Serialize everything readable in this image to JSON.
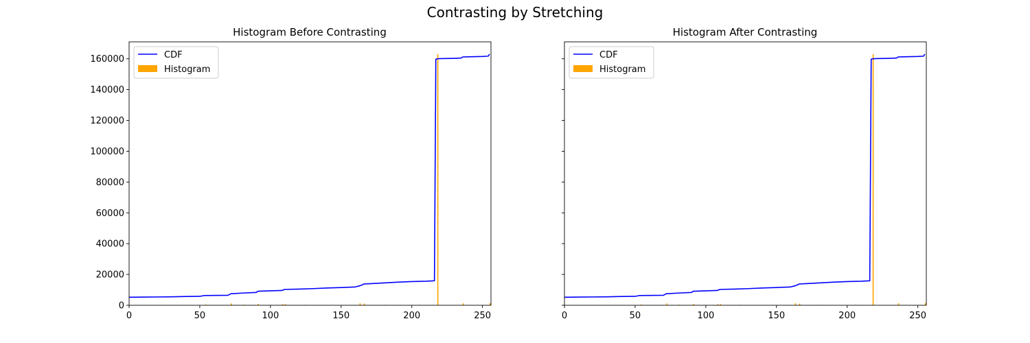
{
  "figure_title": "Contrasting by Stretching",
  "colors": {
    "cdf": "#0000ff",
    "histogram": "#ffa500"
  },
  "chart_data": [
    {
      "type": "line",
      "title": "Histogram Before Contrasting",
      "xlim": [
        0,
        256
      ],
      "ylim": [
        0,
        171000
      ],
      "x_ticks": [
        0,
        50,
        100,
        150,
        200,
        250
      ],
      "y_ticks": [
        0,
        20000,
        40000,
        60000,
        80000,
        100000,
        120000,
        140000,
        160000
      ],
      "show_y_tick_labels": true,
      "grid": false,
      "legend": {
        "position": "upper-left",
        "entries": [
          "CDF",
          "Histogram"
        ]
      },
      "cdf": {
        "name": "CDF",
        "x": [
          0,
          10,
          20,
          30,
          40,
          50,
          53,
          70,
          72,
          80,
          90,
          91,
          100,
          108,
          110,
          120,
          130,
          140,
          150,
          160,
          163,
          165,
          166,
          170,
          175,
          180,
          190,
          200,
          210,
          216,
          217,
          218,
          220,
          230,
          235,
          236,
          240,
          250,
          254,
          255
        ],
        "y": [
          5200,
          5300,
          5400,
          5500,
          5700,
          5800,
          6300,
          6500,
          7500,
          7900,
          8300,
          9100,
          9400,
          9600,
          10300,
          10500,
          10800,
          11200,
          11500,
          11900,
          12600,
          13300,
          13800,
          14000,
          14200,
          14500,
          15000,
          15400,
          15600,
          15900,
          159700,
          160000,
          160100,
          160300,
          160500,
          161200,
          161300,
          161500,
          161700,
          163000
        ]
      },
      "histogram": {
        "name": "Histogram",
        "x": [
          54,
          72,
          81,
          91,
          100,
          108,
          110,
          124,
          163,
          166,
          181,
          205,
          218,
          236,
          255
        ],
        "y": [
          500,
          1200,
          400,
          900,
          300,
          700,
          800,
          300,
          1300,
          1100,
          300,
          300,
          163000,
          1300,
          1400
        ]
      }
    },
    {
      "type": "line",
      "title": "Histogram After Contrasting",
      "xlim": [
        0,
        256
      ],
      "ylim": [
        0,
        171000
      ],
      "x_ticks": [
        0,
        50,
        100,
        150,
        200,
        250
      ],
      "y_ticks": [
        0,
        20000,
        40000,
        60000,
        80000,
        100000,
        120000,
        140000,
        160000
      ],
      "show_y_tick_labels": false,
      "grid": false,
      "legend": {
        "position": "upper-left",
        "entries": [
          "CDF",
          "Histogram"
        ]
      },
      "cdf": {
        "name": "CDF",
        "x": [
          0,
          10,
          20,
          30,
          40,
          50,
          53,
          70,
          72,
          80,
          90,
          91,
          100,
          108,
          110,
          120,
          130,
          140,
          150,
          160,
          163,
          165,
          166,
          170,
          175,
          180,
          190,
          200,
          210,
          216,
          217,
          218,
          220,
          230,
          235,
          236,
          240,
          250,
          254,
          255
        ],
        "y": [
          5200,
          5300,
          5400,
          5500,
          5700,
          5800,
          6300,
          6500,
          7500,
          7900,
          8300,
          9100,
          9400,
          9600,
          10300,
          10500,
          10800,
          11200,
          11500,
          11900,
          12600,
          13300,
          13800,
          14000,
          14200,
          14500,
          15000,
          15400,
          15600,
          15900,
          159700,
          160000,
          160100,
          160300,
          160500,
          161200,
          161300,
          161500,
          161700,
          163000
        ]
      },
      "histogram": {
        "name": "Histogram",
        "x": [
          54,
          72,
          81,
          91,
          100,
          108,
          110,
          124,
          163,
          166,
          181,
          205,
          218,
          236,
          255
        ],
        "y": [
          500,
          1200,
          400,
          900,
          300,
          700,
          800,
          300,
          1300,
          1100,
          300,
          300,
          163000,
          1300,
          1400
        ]
      }
    }
  ]
}
